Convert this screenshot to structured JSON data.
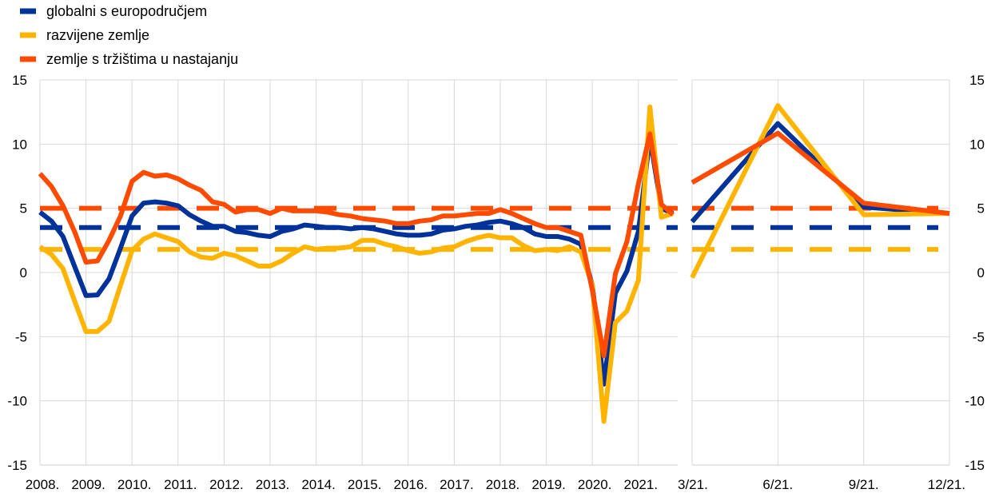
{
  "chart_data": [
    {
      "type": "line",
      "panel": "left",
      "x_tick_labels": [
        "2008.",
        "2009.",
        "2010.",
        "2011.",
        "2012.",
        "2013.",
        "2014.",
        "2015.",
        "2016.",
        "2017.",
        "2018.",
        "2019.",
        "2020.",
        "2021."
      ],
      "x_frequency": "quarterly, 2008 Q1 - 2021 Q4",
      "ylim": [
        -15,
        15
      ],
      "y_ticks": [
        -15,
        -10,
        -5,
        0,
        5,
        10,
        15
      ],
      "y_tick_labels": [
        "-15",
        "-10",
        "-5",
        "0",
        "5",
        "10",
        "15"
      ],
      "grid": true,
      "series": [
        {
          "name": "globalni s europodručjem",
          "color": "#003299",
          "style": "solid",
          "values": [
            4.7,
            4.0,
            2.8,
            0.5,
            -1.8,
            -1.75,
            -0.5,
            1.9,
            4.4,
            5.4,
            5.5,
            5.4,
            5.2,
            4.5,
            4.0,
            3.6,
            3.6,
            3.2,
            3.1,
            2.9,
            2.8,
            3.2,
            3.4,
            3.7,
            3.6,
            3.5,
            3.5,
            3.4,
            3.5,
            3.4,
            3.2,
            3.0,
            2.9,
            2.9,
            3.0,
            3.3,
            3.4,
            3.6,
            3.7,
            3.9,
            4.0,
            3.8,
            3.5,
            3.0,
            2.8,
            2.8,
            2.6,
            2.2,
            -1.0,
            -8.7,
            -1.6,
            0.1,
            3.2,
            10.5,
            5.0,
            4.6
          ]
        },
        {
          "name": "razvijene zemlje",
          "color": "#FFB400",
          "style": "solid",
          "values": [
            2.0,
            1.4,
            0.3,
            -2.2,
            -4.6,
            -4.6,
            -3.8,
            -1.0,
            1.7,
            2.6,
            3.0,
            2.7,
            2.4,
            1.6,
            1.2,
            1.1,
            1.5,
            1.3,
            0.9,
            0.5,
            0.5,
            0.9,
            1.5,
            2.0,
            1.8,
            1.9,
            1.9,
            2.0,
            2.5,
            2.5,
            2.2,
            2.0,
            1.7,
            1.5,
            1.6,
            1.9,
            2.0,
            2.4,
            2.7,
            2.9,
            2.7,
            2.7,
            2.1,
            1.7,
            1.8,
            1.7,
            2.0,
            1.6,
            -1.0,
            -11.6,
            -3.9,
            -3.0,
            -0.6,
            12.9,
            4.3,
            4.6
          ]
        },
        {
          "name": "zemlje s tržištima u nastajanju",
          "color": "#FF4B00",
          "style": "solid",
          "values": [
            7.7,
            6.7,
            5.2,
            3.2,
            0.8,
            0.9,
            2.5,
            4.4,
            7.1,
            7.8,
            7.5,
            7.6,
            7.3,
            6.8,
            6.4,
            5.5,
            5.3,
            4.7,
            4.9,
            4.9,
            4.6,
            5.0,
            4.8,
            4.8,
            4.8,
            4.7,
            4.5,
            4.4,
            4.2,
            4.1,
            4.0,
            3.8,
            3.8,
            4.0,
            4.1,
            4.4,
            4.4,
            4.5,
            4.6,
            4.6,
            4.9,
            4.6,
            4.2,
            3.8,
            3.5,
            3.5,
            3.2,
            2.9,
            -1.4,
            -6.5,
            -0.1,
            2.4,
            6.9,
            10.8,
            5.3,
            4.5
          ]
        }
      ],
      "averages": [
        {
          "series": "globalni s europodručjem",
          "color": "#003299",
          "value": 3.5
        },
        {
          "series": "razvijene zemlje",
          "color": "#FFB400",
          "value": 1.8
        },
        {
          "series": "zemlje s tržištima u nastajanju",
          "color": "#FF4B00",
          "value": 5.0
        }
      ]
    },
    {
      "type": "line",
      "panel": "right",
      "categories": [
        "3/21.",
        "6/21.",
        "9/21.",
        "12/21."
      ],
      "ylim": [
        -15,
        15
      ],
      "y_ticks": [
        -15,
        -10,
        -5,
        0,
        5,
        10,
        15
      ],
      "y_tick_labels": [
        "-15",
        "-10",
        "-5",
        "0",
        "5",
        "10",
        "15"
      ],
      "grid": true,
      "series": [
        {
          "name": "globalni s europodručjem",
          "color": "#003299",
          "values": [
            3.95,
            11.6,
            5.1,
            4.6
          ]
        },
        {
          "name": "razvijene zemlje",
          "color": "#FFB400",
          "values": [
            -0.4,
            13.0,
            4.5,
            4.6
          ]
        },
        {
          "name": "zemlje s tržištima u nastajanju",
          "color": "#FF4B00",
          "values": [
            7.0,
            10.85,
            5.4,
            4.6
          ]
        }
      ],
      "averages": [
        {
          "series": "globalni s europodručjem",
          "color": "#003299",
          "value": 3.5
        },
        {
          "series": "razvijene zemlje",
          "color": "#FFB400",
          "value": 1.8
        },
        {
          "series": "zemlje s tržištima u nastajanju",
          "color": "#FF4B00",
          "value": 5.0
        }
      ]
    }
  ],
  "legend": {
    "placement": "top-left",
    "items": [
      {
        "label": "globalni s europodručjem",
        "color": "#003299"
      },
      {
        "label": "razvijene zemlje",
        "color": "#FFB400"
      },
      {
        "label": "zemlje s tržištima u nastajanju",
        "color": "#FF4B00"
      }
    ]
  }
}
